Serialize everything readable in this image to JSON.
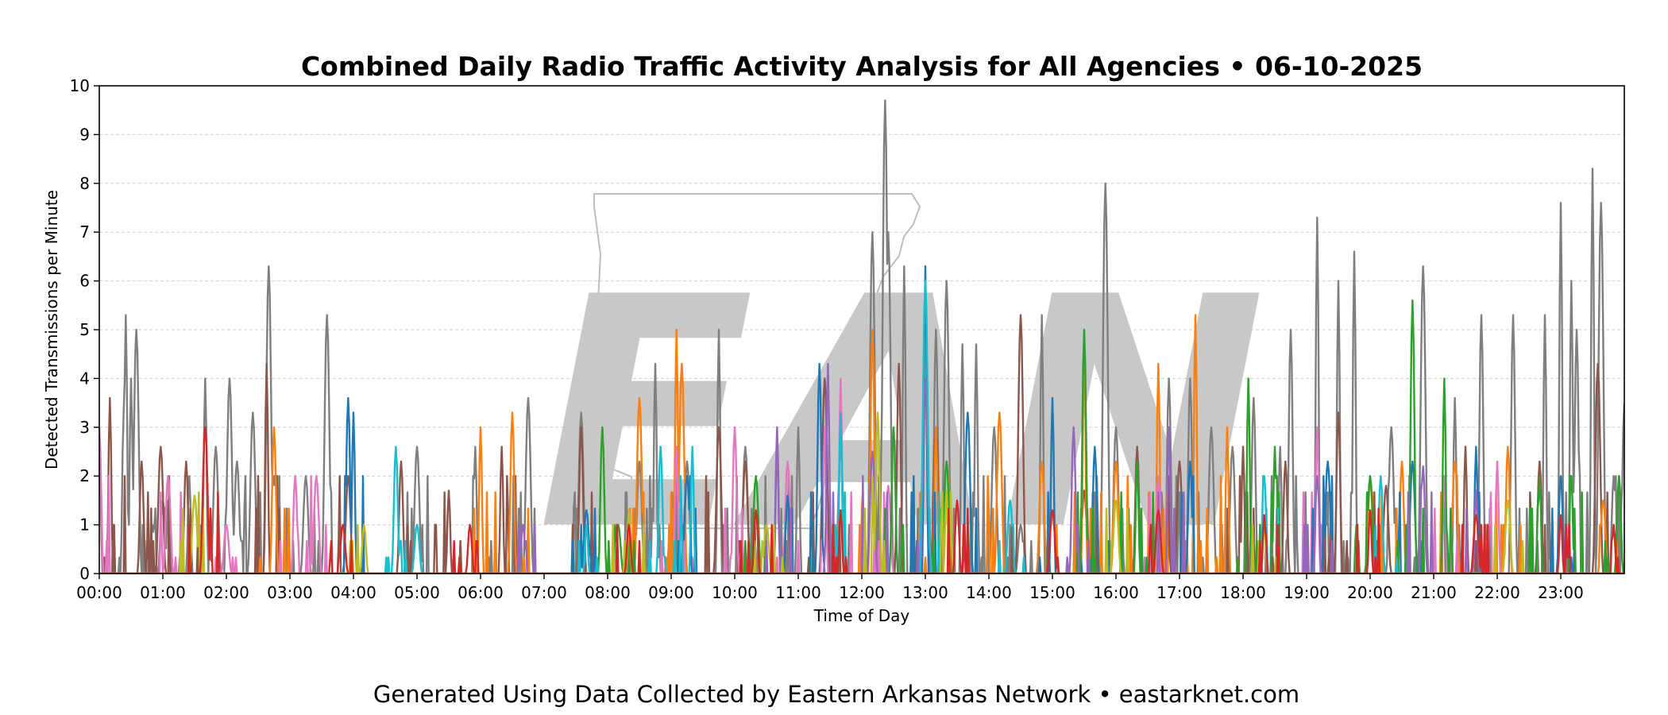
{
  "chart_data": {
    "type": "line",
    "title": "Combined Daily Radio Traffic Activity Analysis for All Agencies • 06-10-2025",
    "xlabel": "Time of Day",
    "ylabel": "Detected Transmissions per Minute",
    "xlim": [
      0,
      1440
    ],
    "ylim": [
      0,
      10
    ],
    "y_ticks": [
      "0",
      "1",
      "2",
      "3",
      "4",
      "5",
      "6",
      "7",
      "8",
      "9",
      "10"
    ],
    "x_ticks": [
      "00:00",
      "01:00",
      "02:00",
      "03:00",
      "04:00",
      "05:00",
      "06:00",
      "07:00",
      "08:00",
      "09:00",
      "10:00",
      "11:00",
      "12:00",
      "13:00",
      "14:00",
      "15:00",
      "16:00",
      "17:00",
      "18:00",
      "19:00",
      "20:00",
      "21:00",
      "22:00",
      "23:00"
    ],
    "grid": "horizontal dashed",
    "series": [
      {
        "color": "#7f7f7f",
        "peaks": [
          [
            0,
            3
          ],
          [
            23,
            3.3
          ],
          [
            25,
            5.3
          ],
          [
            30,
            4
          ],
          [
            35,
            5
          ],
          [
            50,
            1
          ],
          [
            60,
            1.5
          ],
          [
            65,
            1.5
          ],
          [
            85,
            2
          ],
          [
            100,
            4
          ],
          [
            110,
            2.6
          ],
          [
            123,
            4
          ],
          [
            130,
            2.3
          ],
          [
            145,
            3.3
          ],
          [
            160,
            6.3
          ],
          [
            165,
            2
          ],
          [
            195,
            2
          ],
          [
            215,
            5.3
          ],
          [
            300,
            2.6
          ],
          [
            355,
            2.6
          ],
          [
            405,
            3.6
          ],
          [
            455,
            3.3
          ],
          [
            510,
            2.3
          ],
          [
            525,
            4.3
          ],
          [
            540,
            1
          ],
          [
            555,
            2.3
          ],
          [
            585,
            5
          ],
          [
            610,
            2.6
          ],
          [
            640,
            2.6
          ],
          [
            660,
            3
          ],
          [
            700,
            2.6
          ],
          [
            730,
            7
          ],
          [
            742,
            9.7
          ],
          [
            745,
            7
          ],
          [
            760,
            6.3
          ],
          [
            790,
            5
          ],
          [
            800,
            6
          ],
          [
            815,
            4.7
          ],
          [
            828,
            4.7
          ],
          [
            845,
            3
          ],
          [
            870,
            1
          ],
          [
            890,
            5.3
          ],
          [
            950,
            8
          ],
          [
            960,
            3
          ],
          [
            1010,
            4
          ],
          [
            1030,
            4
          ],
          [
            1050,
            3
          ],
          [
            1070,
            2.6
          ],
          [
            1090,
            3.6
          ],
          [
            1115,
            2.6
          ],
          [
            1125,
            5
          ],
          [
            1150,
            7.3
          ],
          [
            1170,
            6
          ],
          [
            1185,
            6.6
          ],
          [
            1220,
            3
          ],
          [
            1250,
            6.3
          ],
          [
            1280,
            3.6
          ],
          [
            1305,
            5.3
          ],
          [
            1335,
            5.3
          ],
          [
            1365,
            5.3
          ],
          [
            1380,
            7.6
          ],
          [
            1390,
            6
          ],
          [
            1395,
            5
          ],
          [
            1410,
            8.3
          ],
          [
            1418,
            7.6
          ],
          [
            1430,
            2
          ],
          [
            1440,
            3.5
          ]
        ]
      },
      {
        "color": "#8c564b",
        "peaks": [
          [
            10,
            3.6
          ],
          [
            40,
            2.3
          ],
          [
            58,
            2.6
          ],
          [
            82,
            2.3
          ],
          [
            158,
            4.3
          ],
          [
            235,
            2
          ],
          [
            285,
            2.3
          ],
          [
            330,
            1.7
          ],
          [
            380,
            2.6
          ],
          [
            455,
            3
          ],
          [
            585,
            3
          ],
          [
            610,
            2.3
          ],
          [
            685,
            4
          ],
          [
            755,
            4.3
          ],
          [
            780,
            4
          ],
          [
            790,
            3
          ],
          [
            870,
            5.3
          ],
          [
            930,
            1.7
          ],
          [
            980,
            2.6
          ],
          [
            1020,
            2.3
          ],
          [
            1080,
            2.6
          ],
          [
            1120,
            2.3
          ],
          [
            1170,
            3.3
          ],
          [
            1215,
            1.8
          ],
          [
            1290,
            2.6
          ],
          [
            1360,
            2.3
          ],
          [
            1415,
            4.3
          ]
        ]
      },
      {
        "color": "#ff7f0e",
        "peaks": [
          [
            165,
            3
          ],
          [
            360,
            3
          ],
          [
            390,
            3.3
          ],
          [
            510,
            3.6
          ],
          [
            545,
            5
          ],
          [
            550,
            4.3
          ],
          [
            730,
            5
          ],
          [
            790,
            3
          ],
          [
            850,
            3.3
          ],
          [
            890,
            2.3
          ],
          [
            930,
            4.6
          ],
          [
            960,
            2.3
          ],
          [
            1000,
            4.3
          ],
          [
            1035,
            5.3
          ],
          [
            1065,
            3
          ],
          [
            1200,
            2
          ],
          [
            1230,
            2.3
          ],
          [
            1280,
            2.3
          ],
          [
            1330,
            2.6
          ],
          [
            1420,
            1.5
          ]
        ]
      },
      {
        "color": "#e377c2",
        "peaks": [
          [
            0,
            3
          ],
          [
            65,
            2
          ],
          [
            120,
            1
          ],
          [
            185,
            2
          ],
          [
            205,
            2
          ],
          [
            545,
            2.6
          ],
          [
            600,
            3
          ],
          [
            650,
            2.3
          ],
          [
            685,
            3
          ],
          [
            700,
            4
          ],
          [
            745,
            1.8
          ],
          [
            1000,
            2
          ],
          [
            1150,
            3
          ],
          [
            1270,
            2
          ],
          [
            1320,
            2.3
          ]
        ]
      },
      {
        "color": "#1f77b4",
        "peaks": [
          [
            235,
            3.6
          ],
          [
            240,
            3.3
          ],
          [
            460,
            1.3
          ],
          [
            555,
            2
          ],
          [
            650,
            1.6
          ],
          [
            680,
            4.3
          ],
          [
            780,
            6.3
          ],
          [
            820,
            3.3
          ],
          [
            900,
            3.6
          ],
          [
            940,
            2.6
          ],
          [
            1030,
            2.3
          ],
          [
            1160,
            2.3
          ],
          [
            1240,
            2.3
          ],
          [
            1300,
            2.6
          ],
          [
            1380,
            2
          ]
        ]
      },
      {
        "color": "#2ca02c",
        "peaks": [
          [
            475,
            3
          ],
          [
            490,
            1
          ],
          [
            620,
            2
          ],
          [
            750,
            3
          ],
          [
            800,
            2.3
          ],
          [
            930,
            5
          ],
          [
            980,
            2.3
          ],
          [
            1085,
            4
          ],
          [
            1110,
            2.6
          ],
          [
            1200,
            2
          ],
          [
            1240,
            5.6
          ],
          [
            1270,
            4
          ],
          [
            1360,
            2
          ],
          [
            1390,
            2
          ],
          [
            1435,
            2
          ]
        ]
      },
      {
        "color": "#9467bd",
        "peaks": [
          [
            400,
            1
          ],
          [
            640,
            3
          ],
          [
            688,
            4.3
          ],
          [
            730,
            2.5
          ],
          [
            780,
            4
          ],
          [
            920,
            3
          ],
          [
            1010,
            3
          ],
          [
            1150,
            2
          ],
          [
            1250,
            2.2
          ],
          [
            1300,
            1.7
          ]
        ]
      },
      {
        "color": "#17becf",
        "peaks": [
          [
            280,
            2.6
          ],
          [
            300,
            1
          ],
          [
            460,
            1
          ],
          [
            530,
            2.6
          ],
          [
            560,
            2.6
          ],
          [
            700,
            3.3
          ],
          [
            780,
            6
          ],
          [
            860,
            1.5
          ],
          [
            1100,
            2
          ],
          [
            1210,
            2
          ]
        ]
      },
      {
        "color": "#bcbd22",
        "peaks": [
          [
            90,
            1.6
          ],
          [
            250,
            1
          ],
          [
            500,
            1.3
          ],
          [
            630,
            1
          ],
          [
            735,
            3.3
          ],
          [
            800,
            1.7
          ],
          [
            960,
            1.5
          ],
          [
            1100,
            1
          ],
          [
            1330,
            1.5
          ]
        ]
      },
      {
        "color": "#d62728",
        "peaks": [
          [
            100,
            3
          ],
          [
            230,
            1
          ],
          [
            350,
            1
          ],
          [
            500,
            1
          ],
          [
            620,
            1.3
          ],
          [
            700,
            1.3
          ],
          [
            810,
            1.5
          ],
          [
            900,
            1.3
          ],
          [
            1000,
            1.3
          ],
          [
            1100,
            1.2
          ],
          [
            1200,
            1.3
          ],
          [
            1300,
            1.2
          ],
          [
            1380,
            1.2
          ],
          [
            1430,
            1
          ]
        ]
      }
    ]
  },
  "footer": "Generated Using Data Collected by Eastern Arkansas Network • eastarknet.com",
  "watermark": {
    "logo_text": "EAN",
    "color": "#c8c8c8"
  }
}
